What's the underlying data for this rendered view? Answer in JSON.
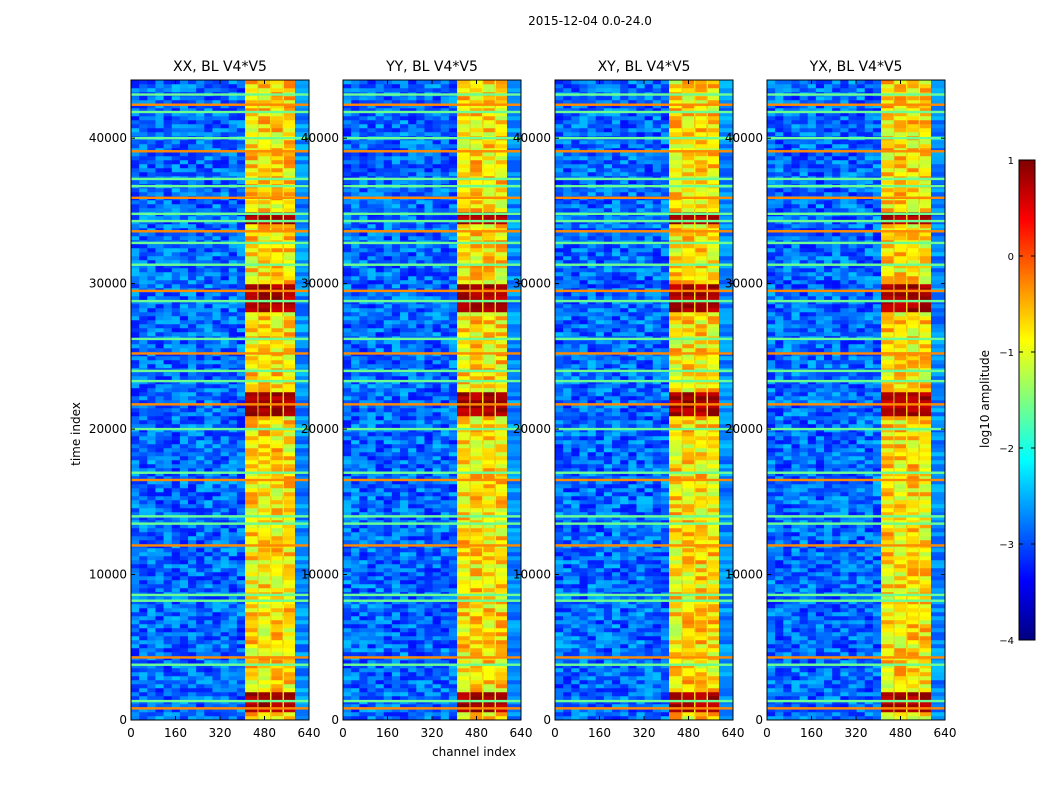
{
  "figure_title": "2015-12-04 0.0-24.0",
  "colors": {
    "jet": [
      "#00007f",
      "#0000ff",
      "#007fff",
      "#00ffff",
      "#7fff7f",
      "#ffff00",
      "#ff7f00",
      "#ff0000",
      "#7f0000"
    ]
  },
  "chart_data": {
    "type": "heatmap",
    "title": "2015-12-04 0.0-24.0",
    "xlabel": "channel index",
    "ylabel": "time index",
    "xlim": [
      0,
      640
    ],
    "ylim": [
      0,
      44000
    ],
    "xticks": [
      0,
      160,
      320,
      480,
      640
    ],
    "yticks": [
      0,
      10000,
      20000,
      30000,
      40000
    ],
    "xtick_labels": [
      "0",
      "160",
      "320",
      "480",
      "640"
    ],
    "ytick_labels": [
      "0",
      "10000",
      "20000",
      "30000",
      "40000"
    ],
    "colorbar": {
      "label": "log10 amplitude",
      "range": [
        -4,
        1
      ],
      "ticks": [
        1,
        0,
        -1,
        -2,
        -3,
        -4
      ],
      "tick_labels": [
        "1",
        "0",
        "−1",
        "−2",
        "−3",
        "−4"
      ]
    },
    "panels": [
      {
        "title": "XX, BL V4*V5",
        "baseline_log10_amp": -3.0
      },
      {
        "title": "YY, BL V4*V5",
        "baseline_log10_amp": -3.0
      },
      {
        "title": "XY, BL V4*V5",
        "baseline_log10_amp": -3.0
      },
      {
        "title": "YX, BL V4*V5",
        "baseline_log10_amp": -3.0
      }
    ],
    "rfi_channel_band": [
      410,
      590
    ],
    "rfi_channel_subbands": [
      [
        410,
        455
      ],
      [
        458,
        500
      ],
      [
        505,
        545
      ],
      [
        550,
        590
      ]
    ],
    "strong_time_bands": [
      [
        500,
        2000
      ],
      [
        21000,
        22500
      ],
      [
        28000,
        30000
      ],
      [
        34000,
        35000
      ]
    ],
    "flagged_time_rows": [
      800,
      1300,
      3800,
      4300,
      8200,
      8600,
      12000,
      13500,
      14000,
      16500,
      17000,
      20000,
      21700,
      23300,
      24000,
      25200,
      26200,
      28800,
      29500,
      31300,
      32800,
      33600,
      34300,
      34800,
      35900,
      36700,
      37200,
      39100,
      40000,
      41800,
      42300,
      43000
    ]
  }
}
